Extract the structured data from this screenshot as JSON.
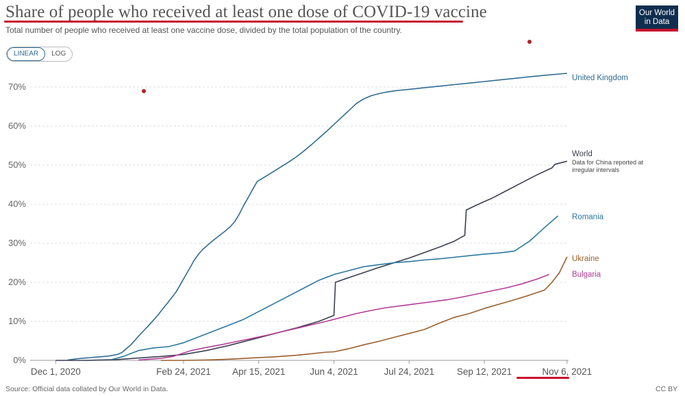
{
  "header": {
    "title": "Share of people who received at least one dose of COVID-19 vaccine",
    "subtitle": "Total number of people who received at least one vaccine dose, divided by the total population of the country."
  },
  "logo": {
    "line1": "Our World",
    "line2": "in Data"
  },
  "scale_toggle": {
    "linear": "LINEAR",
    "log": "LOG",
    "selected": "LINEAR"
  },
  "footer": {
    "source": "Source: Official data collated by Our World in Data.",
    "license": "CC BY"
  },
  "colors": {
    "uk": "#2f6b92",
    "world": "#3a3f50",
    "romania": "#2b77a0",
    "ukraine": "#9a5f2c",
    "bulgaria": "#b43c96",
    "annotation_red": "#c8102e"
  },
  "chart_data": {
    "type": "line",
    "title": "Share of people who received at least one dose of COVID-19 vaccine",
    "xlabel": "",
    "ylabel": "",
    "x_ticks": [
      "Dec 1, 2020",
      "Feb 24, 2021",
      "Apr 15, 2021",
      "Jun 4, 2021",
      "Jul 24, 2021",
      "Sep 12, 2021",
      "Nov 6, 2021"
    ],
    "x_tick_days": [
      0,
      85,
      135,
      185,
      235,
      285,
      340
    ],
    "x_range_days": [
      -17,
      341
    ],
    "y_ticks": [
      "0%",
      "10%",
      "20%",
      "30%",
      "40%",
      "50%",
      "60%",
      "70%"
    ],
    "ylim": [
      0,
      73.5
    ],
    "grid": true,
    "annotation": "Data for China reported at irregular intervals",
    "series": [
      {
        "name": "United Kingdom",
        "key": "uk",
        "x": [
          8,
          10,
          12,
          14,
          17,
          20,
          23,
          26,
          29,
          32,
          35,
          38,
          41,
          44,
          47,
          50,
          53,
          56,
          59,
          62,
          65,
          68,
          71,
          74,
          77,
          80,
          83,
          86,
          89,
          92,
          95,
          98,
          101,
          104,
          107,
          110,
          113,
          116,
          119,
          122,
          125,
          128,
          131,
          134,
          140,
          145,
          150,
          155,
          160,
          165,
          170,
          175,
          180,
          185,
          190,
          195,
          200,
          205,
          210,
          215,
          220,
          225,
          230,
          235,
          245,
          255,
          265,
          275,
          285,
          295,
          305,
          315,
          325,
          340
        ],
        "y": [
          0.1,
          0.2,
          0.3,
          0.4,
          0.5,
          0.6,
          0.7,
          0.8,
          0.9,
          1.0,
          1.1,
          1.3,
          1.5,
          2.0,
          3.0,
          4.0,
          5.3,
          6.6,
          7.8,
          9.0,
          10.3,
          11.6,
          13.1,
          14.5,
          16.0,
          17.5,
          19.5,
          21.5,
          23.5,
          25.6,
          27.2,
          28.5,
          29.5,
          30.5,
          31.4,
          32.3,
          33.2,
          34.2,
          35.5,
          37.4,
          39.7,
          41.7,
          43.8,
          45.8,
          47.2,
          48.4,
          49.6,
          50.8,
          52.1,
          53.6,
          55.2,
          56.9,
          58.6,
          60.4,
          62.2,
          64.0,
          65.8,
          67.0,
          67.8,
          68.3,
          68.7,
          69.0,
          69.2,
          69.4,
          69.8,
          70.2,
          70.6,
          71.0,
          71.4,
          71.8,
          72.2,
          72.6,
          73.0,
          73.5
        ]
      },
      {
        "name": "World",
        "key": "world",
        "x": [
          0,
          20,
          40,
          55,
          70,
          85,
          100,
          115,
          130,
          145,
          160,
          175,
          185,
          186,
          195,
          205,
          215,
          225,
          235,
          245,
          255,
          265,
          272,
          273,
          280,
          290,
          300,
          310,
          320,
          330,
          332,
          340
        ],
        "y": [
          0,
          0,
          0.2,
          0.6,
          1.0,
          1.5,
          2.5,
          3.8,
          5.3,
          6.8,
          8.3,
          10.0,
          11.5,
          20.0,
          21.2,
          22.5,
          23.8,
          25.0,
          26.2,
          27.6,
          29.0,
          30.5,
          32.0,
          38.5,
          39.8,
          41.5,
          43.5,
          45.5,
          47.5,
          49.3,
          50.2,
          51.0
        ]
      },
      {
        "name": "Romania",
        "key": "romania",
        "x": [
          37,
          45,
          55,
          65,
          75,
          85,
          95,
          105,
          115,
          125,
          135,
          145,
          155,
          165,
          175,
          185,
          195,
          205,
          215,
          225,
          235,
          245,
          255,
          265,
          275,
          285,
          295,
          305,
          315,
          325,
          334
        ],
        "y": [
          0.2,
          1.0,
          2.5,
          3.2,
          3.5,
          4.5,
          6.0,
          7.5,
          9.0,
          10.5,
          12.5,
          14.5,
          16.5,
          18.5,
          20.5,
          22.0,
          23.0,
          24.0,
          24.5,
          25.0,
          25.3,
          25.7,
          26.0,
          26.4,
          26.8,
          27.2,
          27.5,
          28.0,
          30.5,
          34.0,
          37.0
        ]
      },
      {
        "name": "Ukraine",
        "key": "ukraine",
        "x": [
          70,
          85,
          100,
          115,
          130,
          145,
          160,
          170,
          180,
          185,
          195,
          205,
          215,
          225,
          235,
          245,
          255,
          265,
          275,
          285,
          295,
          305,
          315,
          325,
          330,
          335,
          340
        ],
        "y": [
          0,
          0,
          0.1,
          0.3,
          0.6,
          0.9,
          1.3,
          1.7,
          2.1,
          2.2,
          3.0,
          4.0,
          4.9,
          5.9,
          6.9,
          7.9,
          9.5,
          11.0,
          12.0,
          13.3,
          14.4,
          15.5,
          16.7,
          18.0,
          20.0,
          22.5,
          26.5
        ]
      },
      {
        "name": "Bulgaria",
        "key": "bulgaria",
        "x": [
          55,
          70,
          78,
          82,
          90,
          100,
          110,
          120,
          130,
          140,
          150,
          160,
          170,
          180,
          190,
          200,
          210,
          220,
          230,
          240,
          250,
          260,
          270,
          280,
          290,
          300,
          310,
          320,
          328
        ],
        "y": [
          0.1,
          0.5,
          1.0,
          1.5,
          2.5,
          3.3,
          4.0,
          4.8,
          5.6,
          6.4,
          7.3,
          8.2,
          9.1,
          10.0,
          11.0,
          12.0,
          12.8,
          13.5,
          14.0,
          14.5,
          15.0,
          15.5,
          16.2,
          17.0,
          17.8,
          18.6,
          19.6,
          20.8,
          22.0
        ]
      }
    ]
  }
}
